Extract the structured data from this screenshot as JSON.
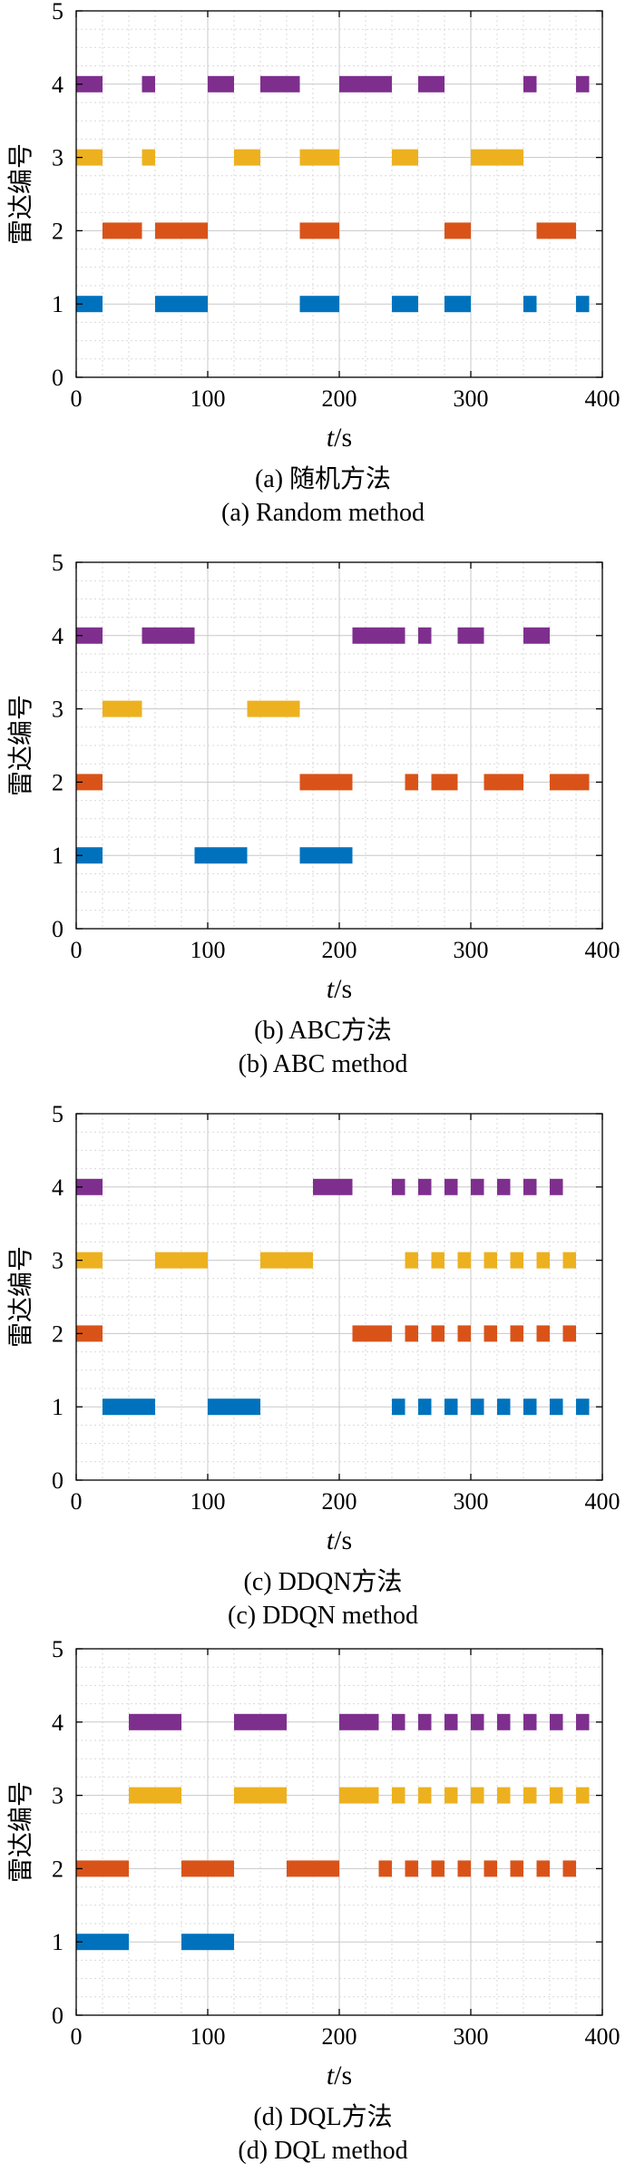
{
  "chart_data": [
    {
      "type": "gantt",
      "caption_cn": "(a) 随机方法",
      "caption_en": "(a) Random method",
      "xlabel": "t",
      "xunit": "/s",
      "ylabel": "雷达编号",
      "xlim": [
        0,
        400
      ],
      "ylim": [
        0,
        5
      ],
      "xticks": [
        0,
        100,
        200,
        300,
        400
      ],
      "yticks": [
        0,
        1,
        2,
        3,
        4,
        5
      ],
      "grid": true,
      "series": [
        {
          "radar": 1,
          "color": "#0072BD",
          "segments": [
            [
              0,
              20
            ],
            [
              60,
              100
            ],
            [
              170,
              200
            ],
            [
              240,
              260
            ],
            [
              280,
              300
            ],
            [
              340,
              350
            ],
            [
              380,
              390
            ]
          ]
        },
        {
          "radar": 2,
          "color": "#D95319",
          "segments": [
            [
              20,
              50
            ],
            [
              60,
              100
            ],
            [
              170,
              200
            ],
            [
              280,
              300
            ],
            [
              350,
              380
            ]
          ]
        },
        {
          "radar": 3,
          "color": "#EDB120",
          "segments": [
            [
              0,
              20
            ],
            [
              50,
              60
            ],
            [
              120,
              140
            ],
            [
              170,
              200
            ],
            [
              240,
              260
            ],
            [
              300,
              340
            ]
          ]
        },
        {
          "radar": 4,
          "color": "#7E2F8E",
          "segments": [
            [
              0,
              20
            ],
            [
              50,
              60
            ],
            [
              100,
              120
            ],
            [
              140,
              170
            ],
            [
              200,
              240
            ],
            [
              260,
              280
            ],
            [
              340,
              350
            ],
            [
              380,
              390
            ]
          ]
        }
      ]
    },
    {
      "type": "gantt",
      "caption_cn": "(b) ABC方法",
      "caption_en": "(b) ABC method",
      "xlabel": "t",
      "xunit": "/s",
      "ylabel": "雷达编号",
      "xlim": [
        0,
        400
      ],
      "ylim": [
        0,
        5
      ],
      "xticks": [
        0,
        100,
        200,
        300,
        400
      ],
      "yticks": [
        0,
        1,
        2,
        3,
        4,
        5
      ],
      "grid": true,
      "series": [
        {
          "radar": 1,
          "color": "#0072BD",
          "segments": [
            [
              0,
              20
            ],
            [
              90,
              130
            ],
            [
              170,
              210
            ]
          ]
        },
        {
          "radar": 2,
          "color": "#D95319",
          "segments": [
            [
              0,
              20
            ],
            [
              170,
              210
            ],
            [
              250,
              260
            ],
            [
              270,
              290
            ],
            [
              310,
              340
            ],
            [
              360,
              390
            ]
          ]
        },
        {
          "radar": 3,
          "color": "#EDB120",
          "segments": [
            [
              20,
              50
            ],
            [
              130,
              170
            ]
          ]
        },
        {
          "radar": 4,
          "color": "#7E2F8E",
          "segments": [
            [
              0,
              20
            ],
            [
              50,
              90
            ],
            [
              210,
              250
            ],
            [
              260,
              270
            ],
            [
              290,
              310
            ],
            [
              340,
              360
            ]
          ]
        }
      ]
    },
    {
      "type": "gantt",
      "caption_cn": "(c) DDQN方法",
      "caption_en": "(c) DDQN method",
      "xlabel": "t",
      "xunit": "/s",
      "ylabel": "雷达编号",
      "xlim": [
        0,
        400
      ],
      "ylim": [
        0,
        5
      ],
      "xticks": [
        0,
        100,
        200,
        300,
        400
      ],
      "yticks": [
        0,
        1,
        2,
        3,
        4,
        5
      ],
      "grid": true,
      "series": [
        {
          "radar": 1,
          "color": "#0072BD",
          "segments": [
            [
              20,
              60
            ],
            [
              100,
              140
            ],
            [
              240,
              250
            ],
            [
              260,
              270
            ],
            [
              280,
              290
            ],
            [
              300,
              310
            ],
            [
              320,
              330
            ],
            [
              340,
              350
            ],
            [
              360,
              370
            ],
            [
              380,
              390
            ]
          ]
        },
        {
          "radar": 2,
          "color": "#D95319",
          "segments": [
            [
              0,
              20
            ],
            [
              210,
              240
            ],
            [
              250,
              260
            ],
            [
              270,
              280
            ],
            [
              290,
              300
            ],
            [
              310,
              320
            ],
            [
              330,
              340
            ],
            [
              350,
              360
            ],
            [
              370,
              380
            ]
          ]
        },
        {
          "radar": 3,
          "color": "#EDB120",
          "segments": [
            [
              0,
              20
            ],
            [
              60,
              100
            ],
            [
              140,
              180
            ],
            [
              250,
              260
            ],
            [
              270,
              280
            ],
            [
              290,
              300
            ],
            [
              310,
              320
            ],
            [
              330,
              340
            ],
            [
              350,
              360
            ],
            [
              370,
              380
            ]
          ]
        },
        {
          "radar": 4,
          "color": "#7E2F8E",
          "segments": [
            [
              0,
              20
            ],
            [
              180,
              210
            ],
            [
              240,
              250
            ],
            [
              260,
              270
            ],
            [
              280,
              290
            ],
            [
              300,
              310
            ],
            [
              320,
              330
            ],
            [
              340,
              350
            ],
            [
              360,
              370
            ]
          ]
        }
      ]
    },
    {
      "type": "gantt",
      "caption_cn": "(d) DQL方法",
      "caption_en": "(d) DQL method",
      "xlabel": "t",
      "xunit": "/s",
      "ylabel": "雷达编号",
      "xlim": [
        0,
        400
      ],
      "ylim": [
        0,
        5
      ],
      "xticks": [
        0,
        100,
        200,
        300,
        400
      ],
      "yticks": [
        0,
        1,
        2,
        3,
        4,
        5
      ],
      "grid": true,
      "series": [
        {
          "radar": 1,
          "color": "#0072BD",
          "segments": [
            [
              0,
              40
            ],
            [
              80,
              120
            ]
          ]
        },
        {
          "radar": 2,
          "color": "#D95319",
          "segments": [
            [
              0,
              40
            ],
            [
              80,
              120
            ],
            [
              160,
              200
            ],
            [
              230,
              240
            ],
            [
              250,
              260
            ],
            [
              270,
              280
            ],
            [
              290,
              300
            ],
            [
              310,
              320
            ],
            [
              330,
              340
            ],
            [
              350,
              360
            ],
            [
              370,
              380
            ]
          ]
        },
        {
          "radar": 3,
          "color": "#EDB120",
          "segments": [
            [
              40,
              80
            ],
            [
              120,
              160
            ],
            [
              200,
              230
            ],
            [
              240,
              250
            ],
            [
              260,
              270
            ],
            [
              280,
              290
            ],
            [
              300,
              310
            ],
            [
              320,
              330
            ],
            [
              340,
              350
            ],
            [
              360,
              370
            ],
            [
              380,
              390
            ]
          ]
        },
        {
          "radar": 4,
          "color": "#7E2F8E",
          "segments": [
            [
              40,
              80
            ],
            [
              120,
              160
            ],
            [
              200,
              230
            ],
            [
              240,
              250
            ],
            [
              260,
              270
            ],
            [
              280,
              290
            ],
            [
              300,
              310
            ],
            [
              320,
              330
            ],
            [
              340,
              350
            ],
            [
              360,
              370
            ],
            [
              380,
              390
            ]
          ]
        }
      ]
    }
  ]
}
